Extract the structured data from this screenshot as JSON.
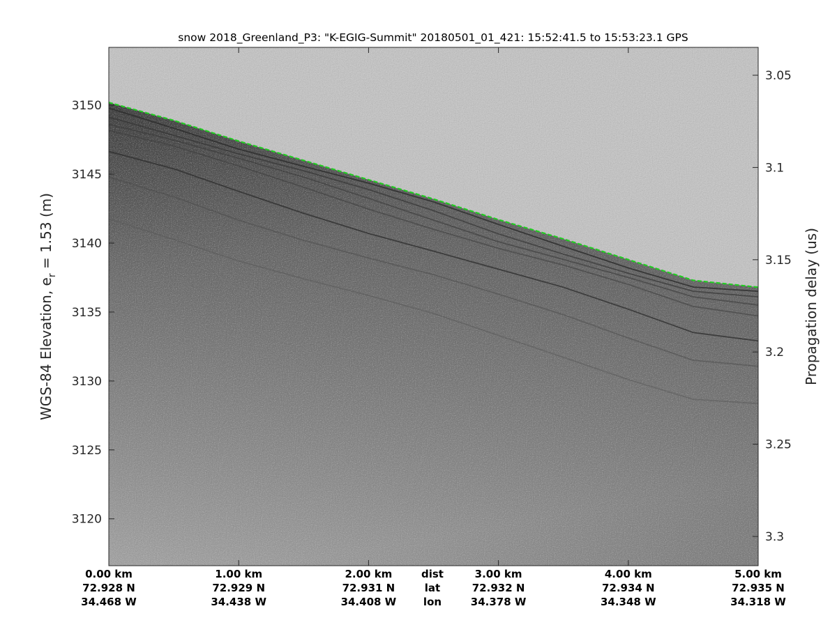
{
  "chart_data": {
    "type": "heatmap",
    "subtype": "radar echogram (grayscale)",
    "title": "snow 2018_Greenland_P3: \"K-EGIG-Summit\"  20180501_01_421: 15:52:41.5 to 15:53:23.1 GPS",
    "ylabel_left": "WGS-84 Elevation, e",
    "ylabel_left_subscript": "r",
    "ylabel_left_suffix": " = 1.53 (m)",
    "ylabel_right": "Propagation delay (us)",
    "x_row_labels": [
      "dist",
      "lat",
      "lon"
    ],
    "x_ticks": [
      {
        "dist": "0.00 km",
        "lat": "72.928 N",
        "lon": "34.468 W"
      },
      {
        "dist": "1.00 km",
        "lat": "72.929 N",
        "lon": "34.438 W"
      },
      {
        "dist": "2.00 km",
        "lat": "72.931 N",
        "lon": "34.408 W"
      },
      {
        "dist": "3.00 km",
        "lat": "72.932 N",
        "lon": "34.378 W"
      },
      {
        "dist": "4.00 km",
        "lat": "72.934 N",
        "lon": "34.348 W"
      },
      {
        "dist": "5.00 km",
        "lat": "72.935 N",
        "lon": "34.318 W"
      }
    ],
    "xlim_km": [
      0,
      5
    ],
    "ylim_left": [
      3116.6,
      3154.2
    ],
    "y_ticks_left": [
      "3120",
      "3125",
      "3130",
      "3135",
      "3140",
      "3145",
      "3150"
    ],
    "y_ticks_right": [
      "3.05",
      "3.1",
      "3.15",
      "3.2",
      "3.25",
      "3.3"
    ],
    "surface_series": {
      "color": "#22cc22",
      "style": "dashed",
      "x_km": [
        0,
        0.5,
        1,
        1.5,
        2,
        2.5,
        3,
        3.5,
        4,
        4.5,
        5
      ],
      "elevation_m": [
        3150.2,
        3148.9,
        3147.4,
        3146.0,
        3144.6,
        3143.2,
        3141.7,
        3140.3,
        3138.8,
        3137.3,
        3136.8
      ]
    },
    "colormap": "gray",
    "grid": false
  }
}
